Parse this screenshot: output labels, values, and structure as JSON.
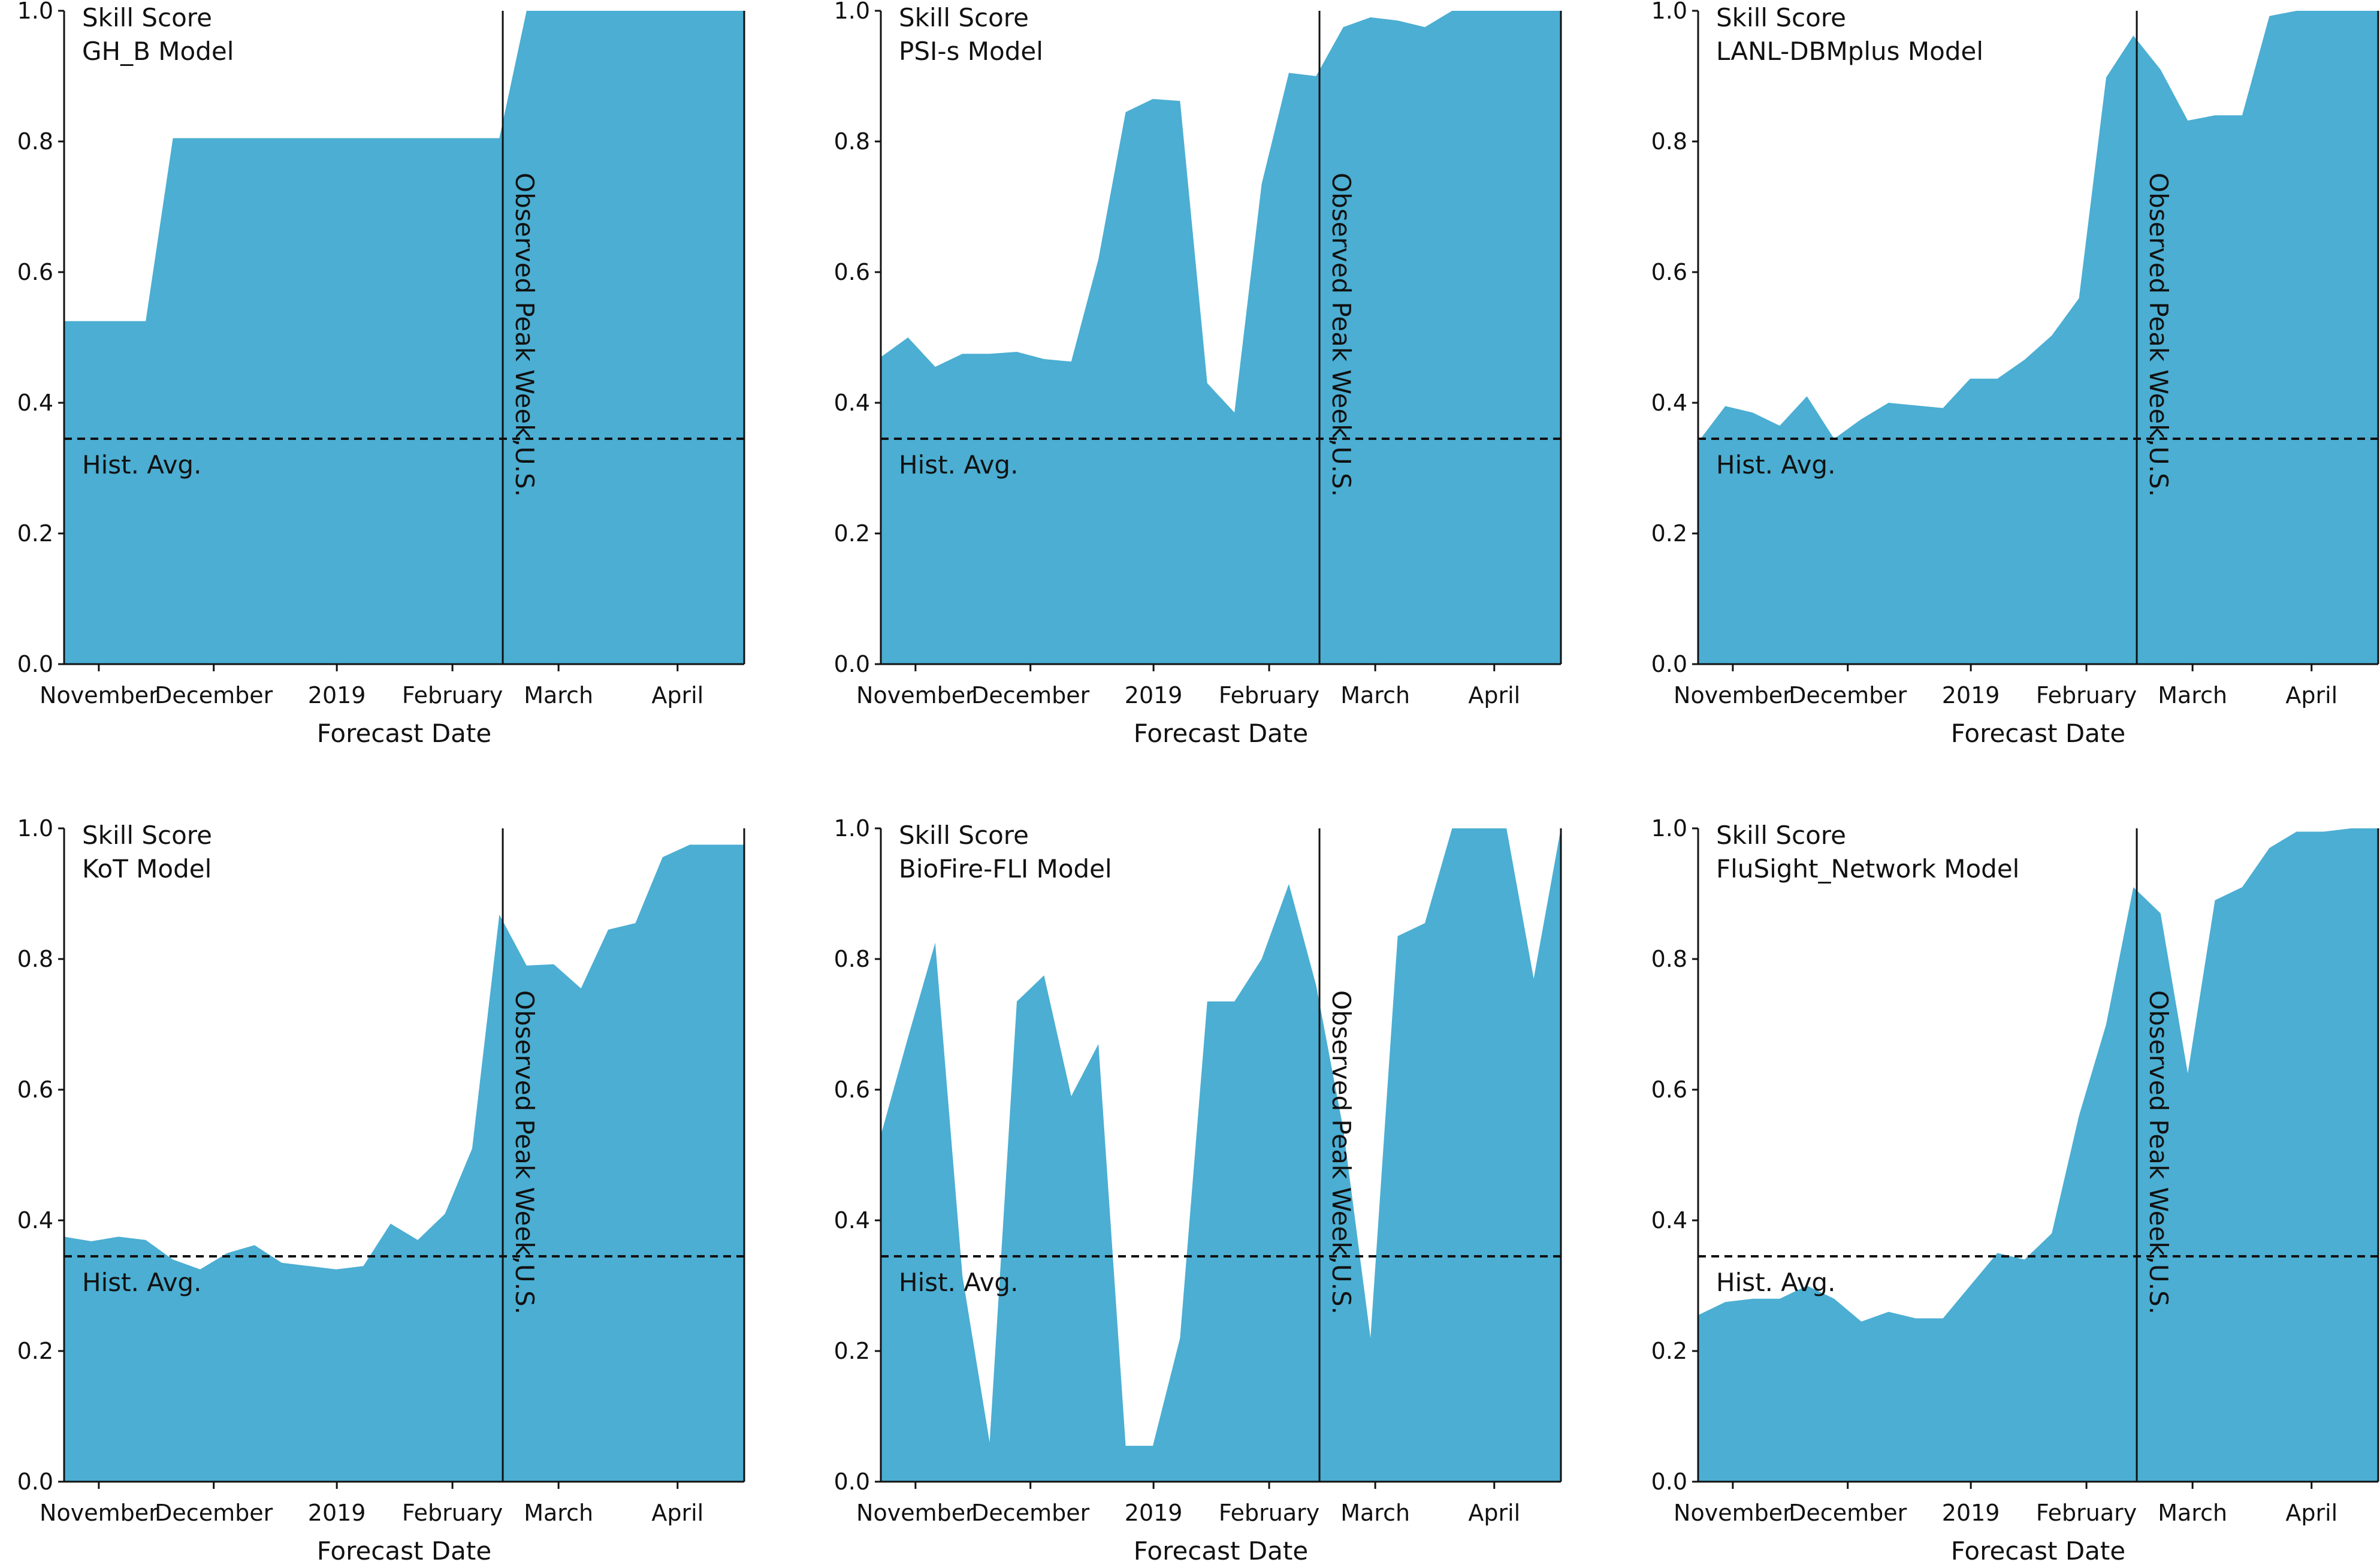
{
  "colors": {
    "fill": "#4baed2",
    "axis": "#111111",
    "background": "#ffffff"
  },
  "chart_data": [
    {
      "type": "area",
      "title": "Skill Score",
      "subtitle": "GH_B Model",
      "xlabel": "Forecast Date",
      "ylabel": "",
      "x_tick_labels": [
        "November",
        "December",
        "2019",
        "February",
        "March",
        "April"
      ],
      "y_tick_labels": [
        "0.0",
        "0.2",
        "0.4",
        "0.6",
        "0.8",
        "1.0"
      ],
      "ylim": [
        0,
        1
      ],
      "x": [
        0,
        7,
        14,
        21,
        28,
        35,
        42,
        49,
        56,
        63,
        70,
        77,
        84,
        91,
        98,
        105,
        112,
        119,
        126,
        133,
        140,
        147,
        154,
        161,
        168,
        175
      ],
      "values": [
        0.525,
        0.525,
        0.525,
        0.525,
        0.805,
        0.805,
        0.805,
        0.805,
        0.805,
        0.805,
        0.805,
        0.805,
        0.805,
        0.805,
        0.805,
        0.805,
        0.805,
        1.0,
        1.0,
        1.0,
        1.0,
        1.0,
        1.0,
        1.0,
        1.0,
        1.0
      ],
      "hist_avg": 0.345,
      "hist_avg_label": "Hist. Avg.",
      "peak_label": "Observed Peak Week,U.S."
    },
    {
      "type": "area",
      "title": "Skill Score",
      "subtitle": "PSI-s Model",
      "xlabel": "Forecast Date",
      "ylabel": "",
      "x_tick_labels": [
        "November",
        "December",
        "2019",
        "February",
        "March",
        "April"
      ],
      "y_tick_labels": [
        "0.0",
        "0.2",
        "0.4",
        "0.6",
        "0.8",
        "1.0"
      ],
      "ylim": [
        0,
        1
      ],
      "x": [
        0,
        7,
        14,
        21,
        28,
        35,
        42,
        49,
        56,
        63,
        70,
        77,
        84,
        91,
        98,
        105,
        112,
        119,
        126,
        133,
        140,
        147,
        154,
        161,
        168,
        175
      ],
      "values": [
        0.47,
        0.5,
        0.455,
        0.475,
        0.475,
        0.478,
        0.467,
        0.463,
        0.62,
        0.845,
        0.865,
        0.862,
        0.43,
        0.385,
        0.735,
        0.905,
        0.9,
        0.975,
        0.99,
        0.985,
        0.975,
        1.0,
        1.0,
        1.0,
        1.0,
        1.0
      ],
      "hist_avg": 0.345,
      "hist_avg_label": "Hist. Avg.",
      "peak_label": "Observed Peak Week,U.S."
    },
    {
      "type": "area",
      "title": "Skill Score",
      "subtitle": "LANL-DBMplus Model",
      "xlabel": "Forecast Date",
      "ylabel": "",
      "x_tick_labels": [
        "November",
        "December",
        "2019",
        "February",
        "March",
        "April"
      ],
      "y_tick_labels": [
        "0.0",
        "0.2",
        "0.4",
        "0.6",
        "0.8",
        "1.0"
      ],
      "ylim": [
        0,
        1
      ],
      "x": [
        0,
        7,
        14,
        21,
        28,
        35,
        42,
        49,
        56,
        63,
        70,
        77,
        84,
        91,
        98,
        105,
        112,
        119,
        126,
        133,
        140,
        147,
        154,
        161,
        168,
        175
      ],
      "values": [
        0.34,
        0.395,
        0.385,
        0.365,
        0.41,
        0.345,
        0.375,
        0.4,
        0.396,
        0.392,
        0.437,
        0.437,
        0.466,
        0.503,
        0.56,
        0.898,
        0.962,
        0.91,
        0.832,
        0.84,
        0.84,
        0.992,
        1.0,
        1.0,
        1.0,
        1.0
      ],
      "hist_avg": 0.345,
      "hist_avg_label": "Hist. Avg.",
      "peak_label": "Observed Peak Week,U.S."
    },
    {
      "type": "area",
      "title": "Skill Score",
      "subtitle": "KoT Model",
      "xlabel": "Forecast Date",
      "ylabel": "",
      "x_tick_labels": [
        "November",
        "December",
        "2019",
        "February",
        "March",
        "April"
      ],
      "y_tick_labels": [
        "0.0",
        "0.2",
        "0.4",
        "0.6",
        "0.8",
        "1.0"
      ],
      "ylim": [
        0,
        1
      ],
      "x": [
        0,
        7,
        14,
        21,
        28,
        35,
        42,
        49,
        56,
        63,
        70,
        77,
        84,
        91,
        98,
        105,
        112,
        119,
        126,
        133,
        140,
        147,
        154,
        161,
        168,
        175
      ],
      "values": [
        0.375,
        0.368,
        0.375,
        0.37,
        0.34,
        0.325,
        0.35,
        0.362,
        0.335,
        0.33,
        0.325,
        0.33,
        0.395,
        0.37,
        0.41,
        0.51,
        0.868,
        0.79,
        0.792,
        0.755,
        0.845,
        0.855,
        0.956,
        0.975,
        0.975,
        0.975
      ],
      "hist_avg": 0.345,
      "hist_avg_label": "Hist. Avg.",
      "peak_label": "Observed Peak Week,U.S."
    },
    {
      "type": "area",
      "title": "Skill Score",
      "subtitle": "BioFire-FLI Model",
      "xlabel": "Forecast Date",
      "ylabel": "",
      "x_tick_labels": [
        "November",
        "December",
        "2019",
        "February",
        "March",
        "April"
      ],
      "y_tick_labels": [
        "0.0",
        "0.2",
        "0.4",
        "0.6",
        "0.8",
        "1.0"
      ],
      "ylim": [
        0,
        1
      ],
      "x": [
        0,
        7,
        14,
        21,
        28,
        35,
        42,
        49,
        56,
        63,
        70,
        77,
        84,
        91,
        98,
        105,
        112,
        119,
        126,
        133,
        140,
        147,
        154,
        161,
        168,
        175
      ],
      "values": [
        0.53,
        0.68,
        0.825,
        0.315,
        0.06,
        0.735,
        0.775,
        0.59,
        0.67,
        0.055,
        0.055,
        0.22,
        0.735,
        0.735,
        0.8,
        0.915,
        0.76,
        0.54,
        0.22,
        0.835,
        0.855,
        1.0,
        1.0,
        1.0,
        0.77,
        1.0
      ],
      "hist_avg": 0.345,
      "hist_avg_label": "Hist. Avg.",
      "peak_label": "Observed Peak Week,U.S."
    },
    {
      "type": "area",
      "title": "Skill Score",
      "subtitle": "FluSight_Network Model",
      "xlabel": "Forecast Date",
      "ylabel": "",
      "x_tick_labels": [
        "November",
        "December",
        "2019",
        "February",
        "March",
        "April"
      ],
      "y_tick_labels": [
        "0.0",
        "0.2",
        "0.4",
        "0.6",
        "0.8",
        "1.0"
      ],
      "ylim": [
        0,
        1
      ],
      "x": [
        0,
        7,
        14,
        21,
        28,
        35,
        42,
        49,
        56,
        63,
        70,
        77,
        84,
        91,
        98,
        105,
        112,
        119,
        126,
        133,
        140,
        147,
        154,
        161,
        168,
        175
      ],
      "values": [
        0.255,
        0.275,
        0.28,
        0.28,
        0.3,
        0.28,
        0.245,
        0.26,
        0.25,
        0.25,
        0.3,
        0.35,
        0.34,
        0.38,
        0.56,
        0.7,
        0.91,
        0.87,
        0.625,
        0.89,
        0.91,
        0.97,
        0.995,
        0.995,
        1.0,
        1.0
      ],
      "hist_avg": 0.345,
      "hist_avg_label": "Hist. Avg.",
      "peak_label": "Observed Peak Week,U.S."
    }
  ]
}
